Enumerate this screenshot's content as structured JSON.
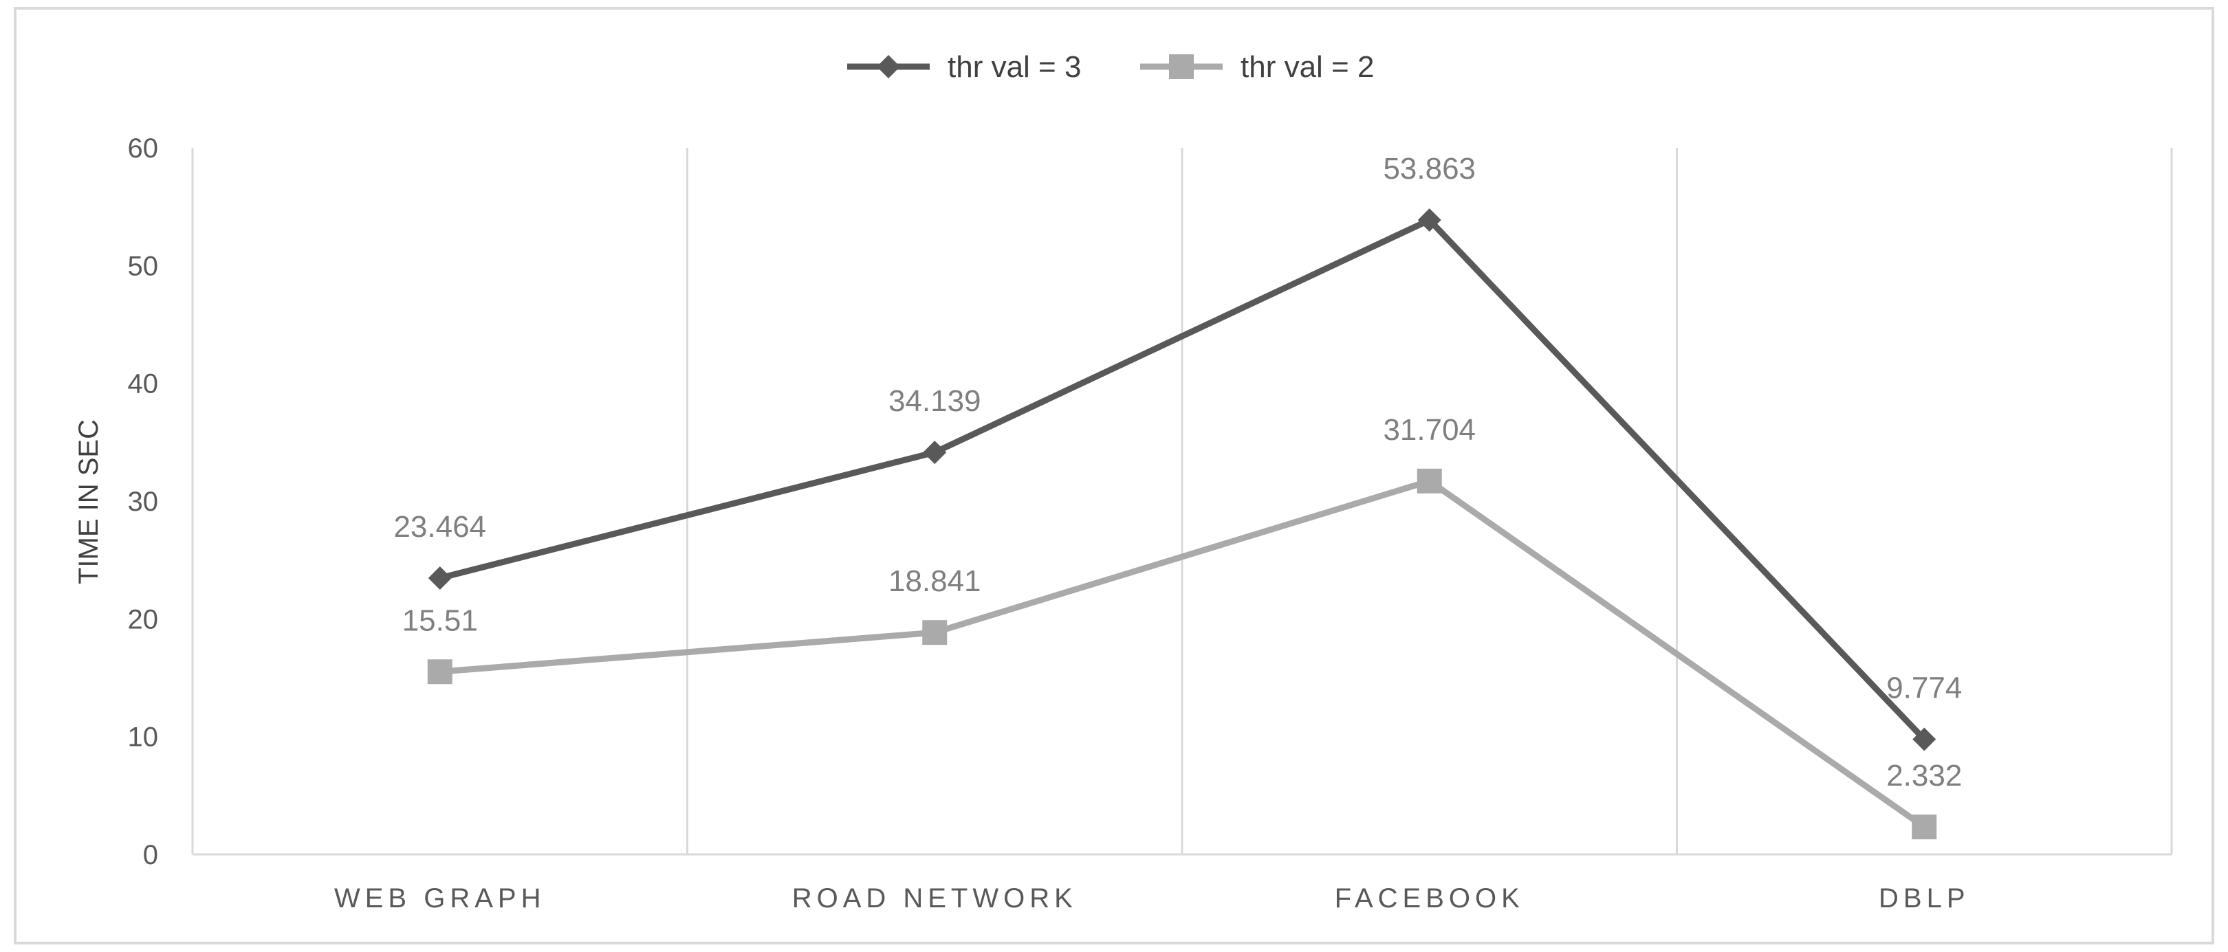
{
  "chart_data": {
    "type": "line",
    "categories": [
      "WEB GRAPH",
      "ROAD NETWORK",
      "FACEBOOK",
      "DBLP"
    ],
    "series": [
      {
        "name": "thr val =  3",
        "values": [
          23.464,
          34.139,
          53.863,
          9.774
        ],
        "labels": [
          "23.464",
          "34.139",
          "53.863",
          "9.774"
        ],
        "color": "#595959",
        "marker": "diamond"
      },
      {
        "name": "thr val = 2",
        "values": [
          15.51,
          18.841,
          31.704,
          2.332
        ],
        "labels": [
          "15.51",
          "18.841",
          "31.704",
          "2.332"
        ],
        "color": "#aaaaaa",
        "marker": "square"
      }
    ],
    "ylabel": "TIME IN SEC",
    "xlabel": "",
    "ylim": [
      0,
      60
    ],
    "yticks": [
      0,
      10,
      20,
      30,
      40,
      50,
      60
    ],
    "grid": "vertical",
    "legend": "top",
    "border_color": "#d9d9d9"
  }
}
